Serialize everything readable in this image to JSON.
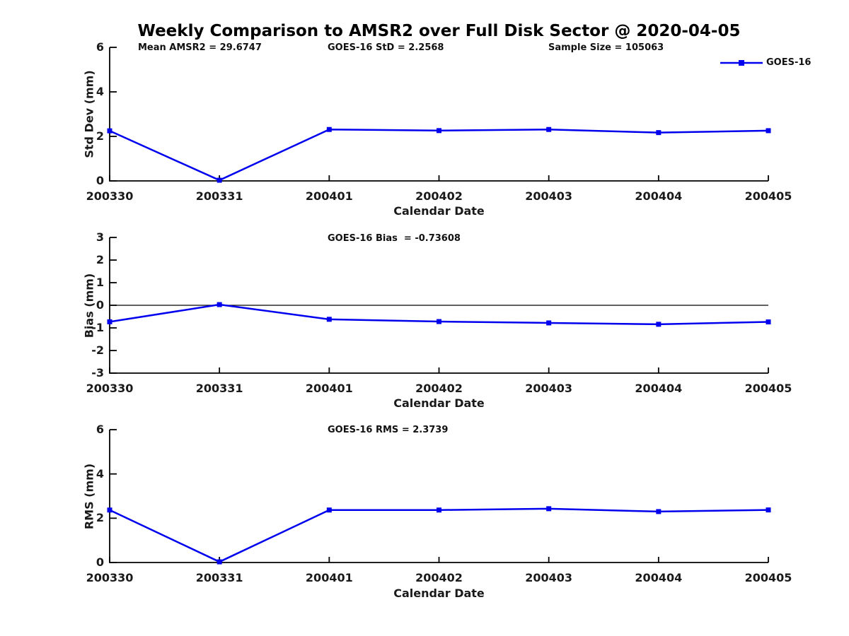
{
  "figure": {
    "title": "Weekly Comparison to AMSR2 over Full Disk Sector @ 2020-04-05",
    "legend_label": "GOES-16",
    "colors": {
      "series": "#0000ee",
      "axis": "#000000",
      "text": "#1a1a1a",
      "background": "#ffffff"
    }
  },
  "chart_data": [
    {
      "type": "line",
      "series_name": "GOES-16",
      "marker": "square",
      "categories": [
        "200330",
        "200331",
        "200401",
        "200402",
        "200403",
        "200404",
        "200405"
      ],
      "values": [
        2.25,
        0.03,
        2.31,
        2.26,
        2.31,
        2.17,
        2.2568
      ],
      "xlabel": "Calendar Date",
      "ylabel": "Std Dev (mm)",
      "ylim": [
        0,
        6
      ],
      "yticks": [
        0,
        2,
        4,
        6
      ],
      "grid": false,
      "legend_position": "top-right",
      "annotations": [
        "Mean AMSR2 = 29.6747",
        "GOES-16 StD = 2.2568",
        "Sample Size = 105063"
      ]
    },
    {
      "type": "line",
      "series_name": "GOES-16",
      "marker": "square",
      "categories": [
        "200330",
        "200331",
        "200401",
        "200402",
        "200403",
        "200404",
        "200405"
      ],
      "values": [
        -0.73,
        0.03,
        -0.62,
        -0.72,
        -0.78,
        -0.84,
        -0.73608
      ],
      "xlabel": "Calendar Date",
      "ylabel": "Bias (mm)",
      "ylim": [
        -3,
        3
      ],
      "yticks": [
        3,
        2,
        1,
        0,
        -1,
        -2,
        -3
      ],
      "zero_line": true,
      "grid": false,
      "annotations": [
        "GOES-16 Bias  = -0.73608"
      ]
    },
    {
      "type": "line",
      "series_name": "GOES-16",
      "marker": "square",
      "categories": [
        "200330",
        "200331",
        "200401",
        "200402",
        "200403",
        "200404",
        "200405"
      ],
      "values": [
        2.37,
        0.03,
        2.37,
        2.37,
        2.43,
        2.3,
        2.3739
      ],
      "xlabel": "Calendar Date",
      "ylabel": "RMS (mm)",
      "ylim": [
        0,
        6
      ],
      "yticks": [
        0,
        2,
        4,
        6
      ],
      "grid": false,
      "annotations": [
        "GOES-16 RMS = 2.3739"
      ]
    }
  ]
}
